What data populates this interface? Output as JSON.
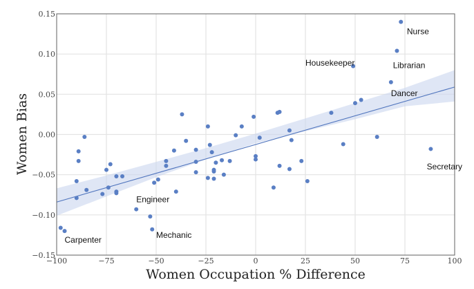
{
  "chart_data": {
    "type": "scatter",
    "title": "",
    "xlabel": "Women Occupation % Difference",
    "ylabel": "Women Bias",
    "xlim": [
      -100,
      100
    ],
    "ylim": [
      -0.15,
      0.15
    ],
    "xticks": [
      -100,
      -75,
      -50,
      -25,
      0,
      25,
      50,
      75,
      100
    ],
    "yticks": [
      -0.15,
      -0.1,
      -0.05,
      0.0,
      0.05,
      0.1,
      0.15
    ],
    "xtick_labels": [
      "−100",
      "−75",
      "−50",
      "−25",
      "0",
      "25",
      "50",
      "75",
      "100"
    ],
    "ytick_labels": [
      "−0.15",
      "−0.10",
      "−0.05",
      "0.00",
      "0.05",
      "0.10",
      "0.15"
    ],
    "grid": true,
    "points": [
      {
        "x": -98,
        "y": -0.116
      },
      {
        "x": -96,
        "y": -0.12
      },
      {
        "x": -90,
        "y": -0.079
      },
      {
        "x": -90,
        "y": -0.058
      },
      {
        "x": -89,
        "y": -0.033
      },
      {
        "x": -89,
        "y": -0.021
      },
      {
        "x": -86,
        "y": -0.003
      },
      {
        "x": -85,
        "y": -0.069
      },
      {
        "x": -77,
        "y": -0.074
      },
      {
        "x": -75,
        "y": -0.044
      },
      {
        "x": -74,
        "y": -0.066
      },
      {
        "x": -73,
        "y": -0.037
      },
      {
        "x": -70,
        "y": -0.052
      },
      {
        "x": -70,
        "y": -0.071
      },
      {
        "x": -70,
        "y": -0.073
      },
      {
        "x": -67,
        "y": -0.052
      },
      {
        "x": -60,
        "y": -0.093
      },
      {
        "x": -53,
        "y": -0.102
      },
      {
        "x": -52,
        "y": -0.118
      },
      {
        "x": -51,
        "y": -0.06
      },
      {
        "x": -49,
        "y": -0.056
      },
      {
        "x": -45,
        "y": -0.033
      },
      {
        "x": -45,
        "y": -0.039
      },
      {
        "x": -41,
        "y": -0.02
      },
      {
        "x": -40,
        "y": -0.071
      },
      {
        "x": -37,
        "y": 0.025
      },
      {
        "x": -35,
        "y": -0.008
      },
      {
        "x": -30,
        "y": -0.019
      },
      {
        "x": -30,
        "y": -0.034
      },
      {
        "x": -30,
        "y": -0.047
      },
      {
        "x": -24,
        "y": 0.01
      },
      {
        "x": -24,
        "y": -0.054
      },
      {
        "x": -23,
        "y": -0.013
      },
      {
        "x": -22,
        "y": -0.022
      },
      {
        "x": -21,
        "y": -0.044
      },
      {
        "x": -21,
        "y": -0.046
      },
      {
        "x": -21,
        "y": -0.055
      },
      {
        "x": -20,
        "y": -0.035
      },
      {
        "x": -17,
        "y": -0.032
      },
      {
        "x": -16,
        "y": -0.05
      },
      {
        "x": -13,
        "y": -0.033
      },
      {
        "x": -10,
        "y": -0.001
      },
      {
        "x": -7,
        "y": 0.01
      },
      {
        "x": -1,
        "y": 0.022
      },
      {
        "x": 0,
        "y": -0.027
      },
      {
        "x": 0,
        "y": -0.031
      },
      {
        "x": 2,
        "y": -0.004
      },
      {
        "x": 9,
        "y": -0.066
      },
      {
        "x": 11,
        "y": 0.027
      },
      {
        "x": 12,
        "y": 0.028
      },
      {
        "x": 12,
        "y": -0.039
      },
      {
        "x": 17,
        "y": 0.005
      },
      {
        "x": 17,
        "y": -0.043
      },
      {
        "x": 18,
        "y": -0.007
      },
      {
        "x": 23,
        "y": -0.033
      },
      {
        "x": 26,
        "y": -0.058
      },
      {
        "x": 38,
        "y": 0.027
      },
      {
        "x": 44,
        "y": -0.012
      },
      {
        "x": 49,
        "y": 0.085
      },
      {
        "x": 50,
        "y": 0.039
      },
      {
        "x": 53,
        "y": 0.043
      },
      {
        "x": 61,
        "y": -0.003
      },
      {
        "x": 68,
        "y": 0.065
      },
      {
        "x": 71,
        "y": 0.104
      },
      {
        "x": 73,
        "y": 0.14
      },
      {
        "x": 88,
        "y": -0.018
      }
    ],
    "regression": {
      "x": [
        -100,
        100
      ],
      "y": [
        -0.084,
        0.059
      ]
    },
    "confidence_band": {
      "x": [
        -100,
        -75,
        -50,
        -25,
        0,
        25,
        50,
        75,
        100
      ],
      "upper": [
        -0.067,
        -0.051,
        -0.034,
        -0.017,
        0.001,
        0.02,
        0.039,
        0.058,
        0.08
      ],
      "lower": [
        -0.101,
        -0.077,
        -0.053,
        -0.031,
        -0.011,
        0.004,
        0.019,
        0.035,
        0.041
      ]
    },
    "annotations": [
      {
        "label": "Nurse",
        "x": 76,
        "y": 0.128
      },
      {
        "label": "Housekeeper",
        "x": 25,
        "y": 0.089
      },
      {
        "label": "Librarian",
        "x": 69,
        "y": 0.086
      },
      {
        "label": "Dancer",
        "x": 68,
        "y": 0.051
      },
      {
        "label": "Secretary",
        "x": 86,
        "y": -0.04
      },
      {
        "label": "Engineer",
        "x": -60,
        "y": -0.081
      },
      {
        "label": "Mechanic",
        "x": -50,
        "y": -0.125
      },
      {
        "label": "Carpenter",
        "x": -96,
        "y": -0.131
      }
    ]
  }
}
